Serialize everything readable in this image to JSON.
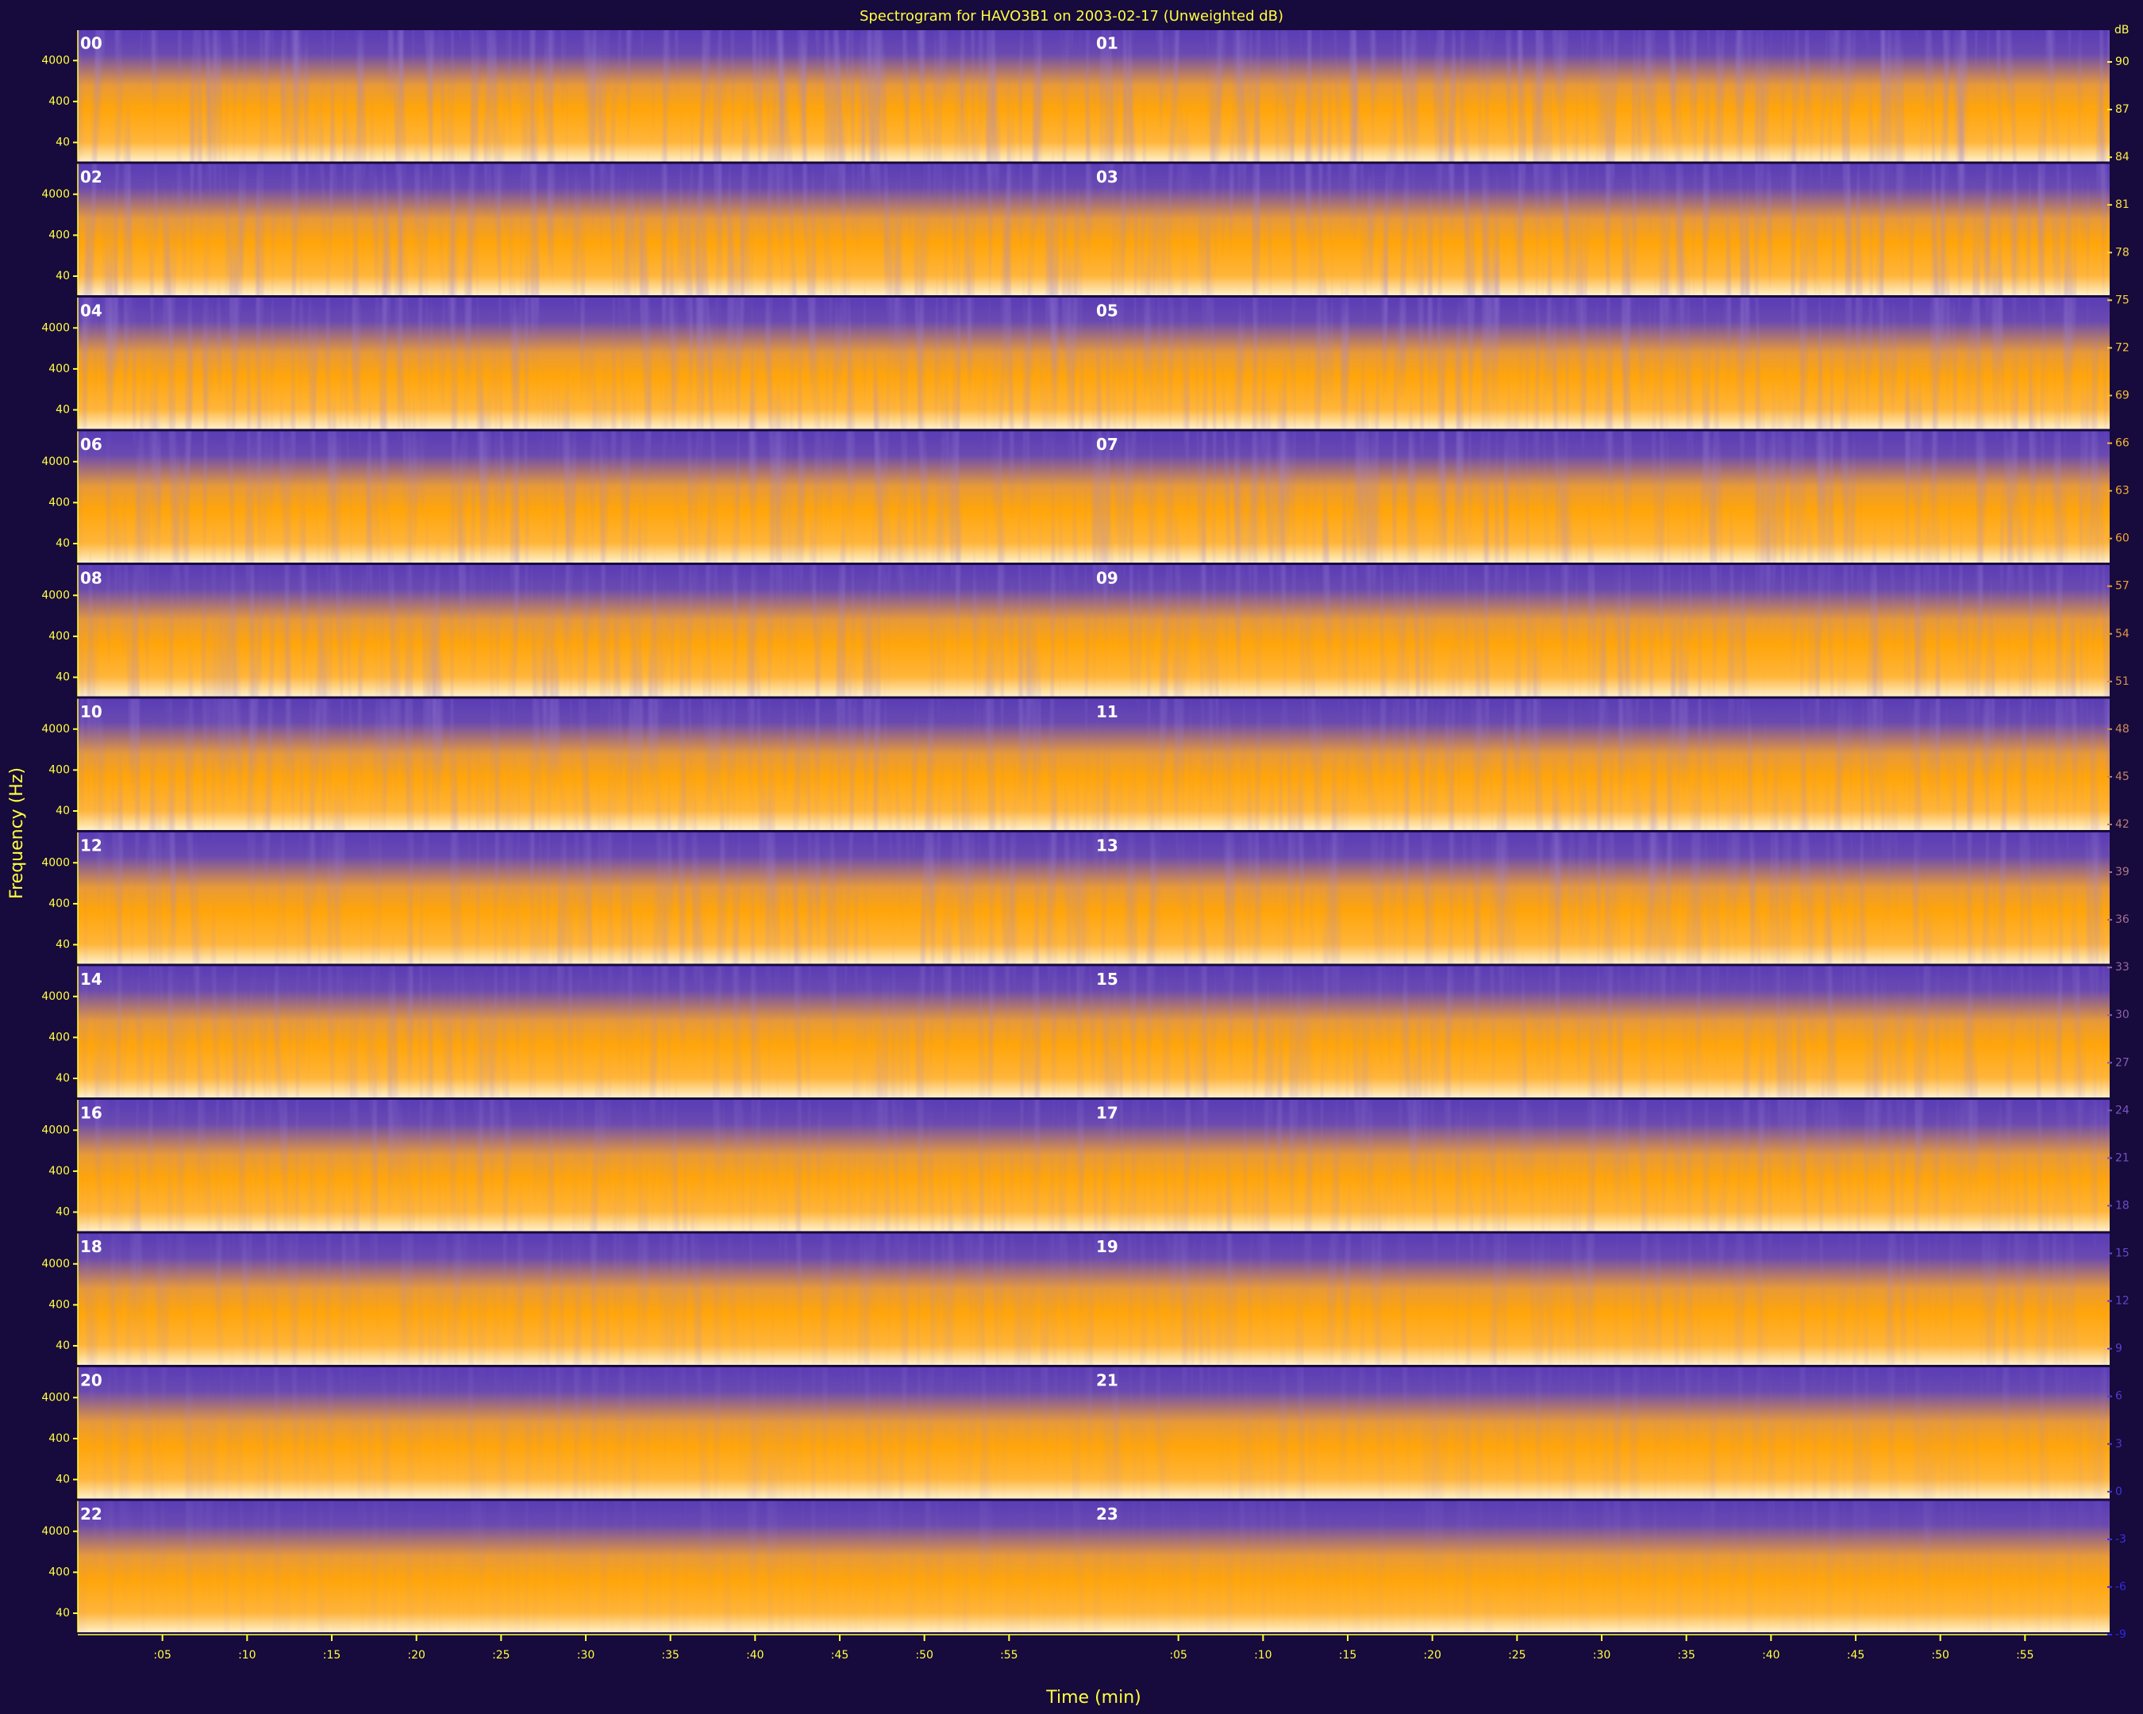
{
  "chart_data": {
    "type": "spectrogram",
    "title": "Spectrogram for HAVO3B1 on 2003-02-17 (Unweighted dB)",
    "x_label": "Time (min)",
    "y_label": "Frequency (Hz)",
    "hours": [
      "00",
      "01",
      "02",
      "03",
      "04",
      "05",
      "06",
      "07",
      "08",
      "09",
      "10",
      "11",
      "12",
      "13",
      "14",
      "15",
      "16",
      "17",
      "18",
      "19",
      "20",
      "21",
      "22",
      "23"
    ],
    "xlim": [
      0,
      60
    ],
    "xticks": [
      {
        "value": 5,
        "label": ":05"
      },
      {
        "value": 10,
        "label": ":10"
      },
      {
        "value": 15,
        "label": ":15"
      },
      {
        "value": 20,
        "label": ":20"
      },
      {
        "value": 25,
        "label": ":25"
      },
      {
        "value": 30,
        "label": ":30"
      },
      {
        "value": 35,
        "label": ":35"
      },
      {
        "value": 40,
        "label": ":40"
      },
      {
        "value": 45,
        "label": ":45"
      },
      {
        "value": 50,
        "label": ":50"
      },
      {
        "value": 55,
        "label": ":55"
      }
    ],
    "ylim": [
      12,
      22050
    ],
    "log_y": true,
    "yticks": [
      40,
      400,
      4000
    ],
    "colorbar": {
      "label": "dB",
      "clim": [
        -9,
        92
      ],
      "ticks": [
        90,
        87,
        84,
        81,
        78,
        75,
        72,
        69,
        66,
        63,
        60,
        57,
        54,
        51,
        48,
        45,
        42,
        39,
        36,
        33,
        30,
        27,
        24,
        21,
        18,
        15,
        12,
        9,
        6,
        3,
        0,
        -3,
        -6,
        -9
      ]
    },
    "colormap": [
      "#2a28e8",
      "#7a58c0",
      "#f0a030",
      "#ffff50"
    ]
  }
}
